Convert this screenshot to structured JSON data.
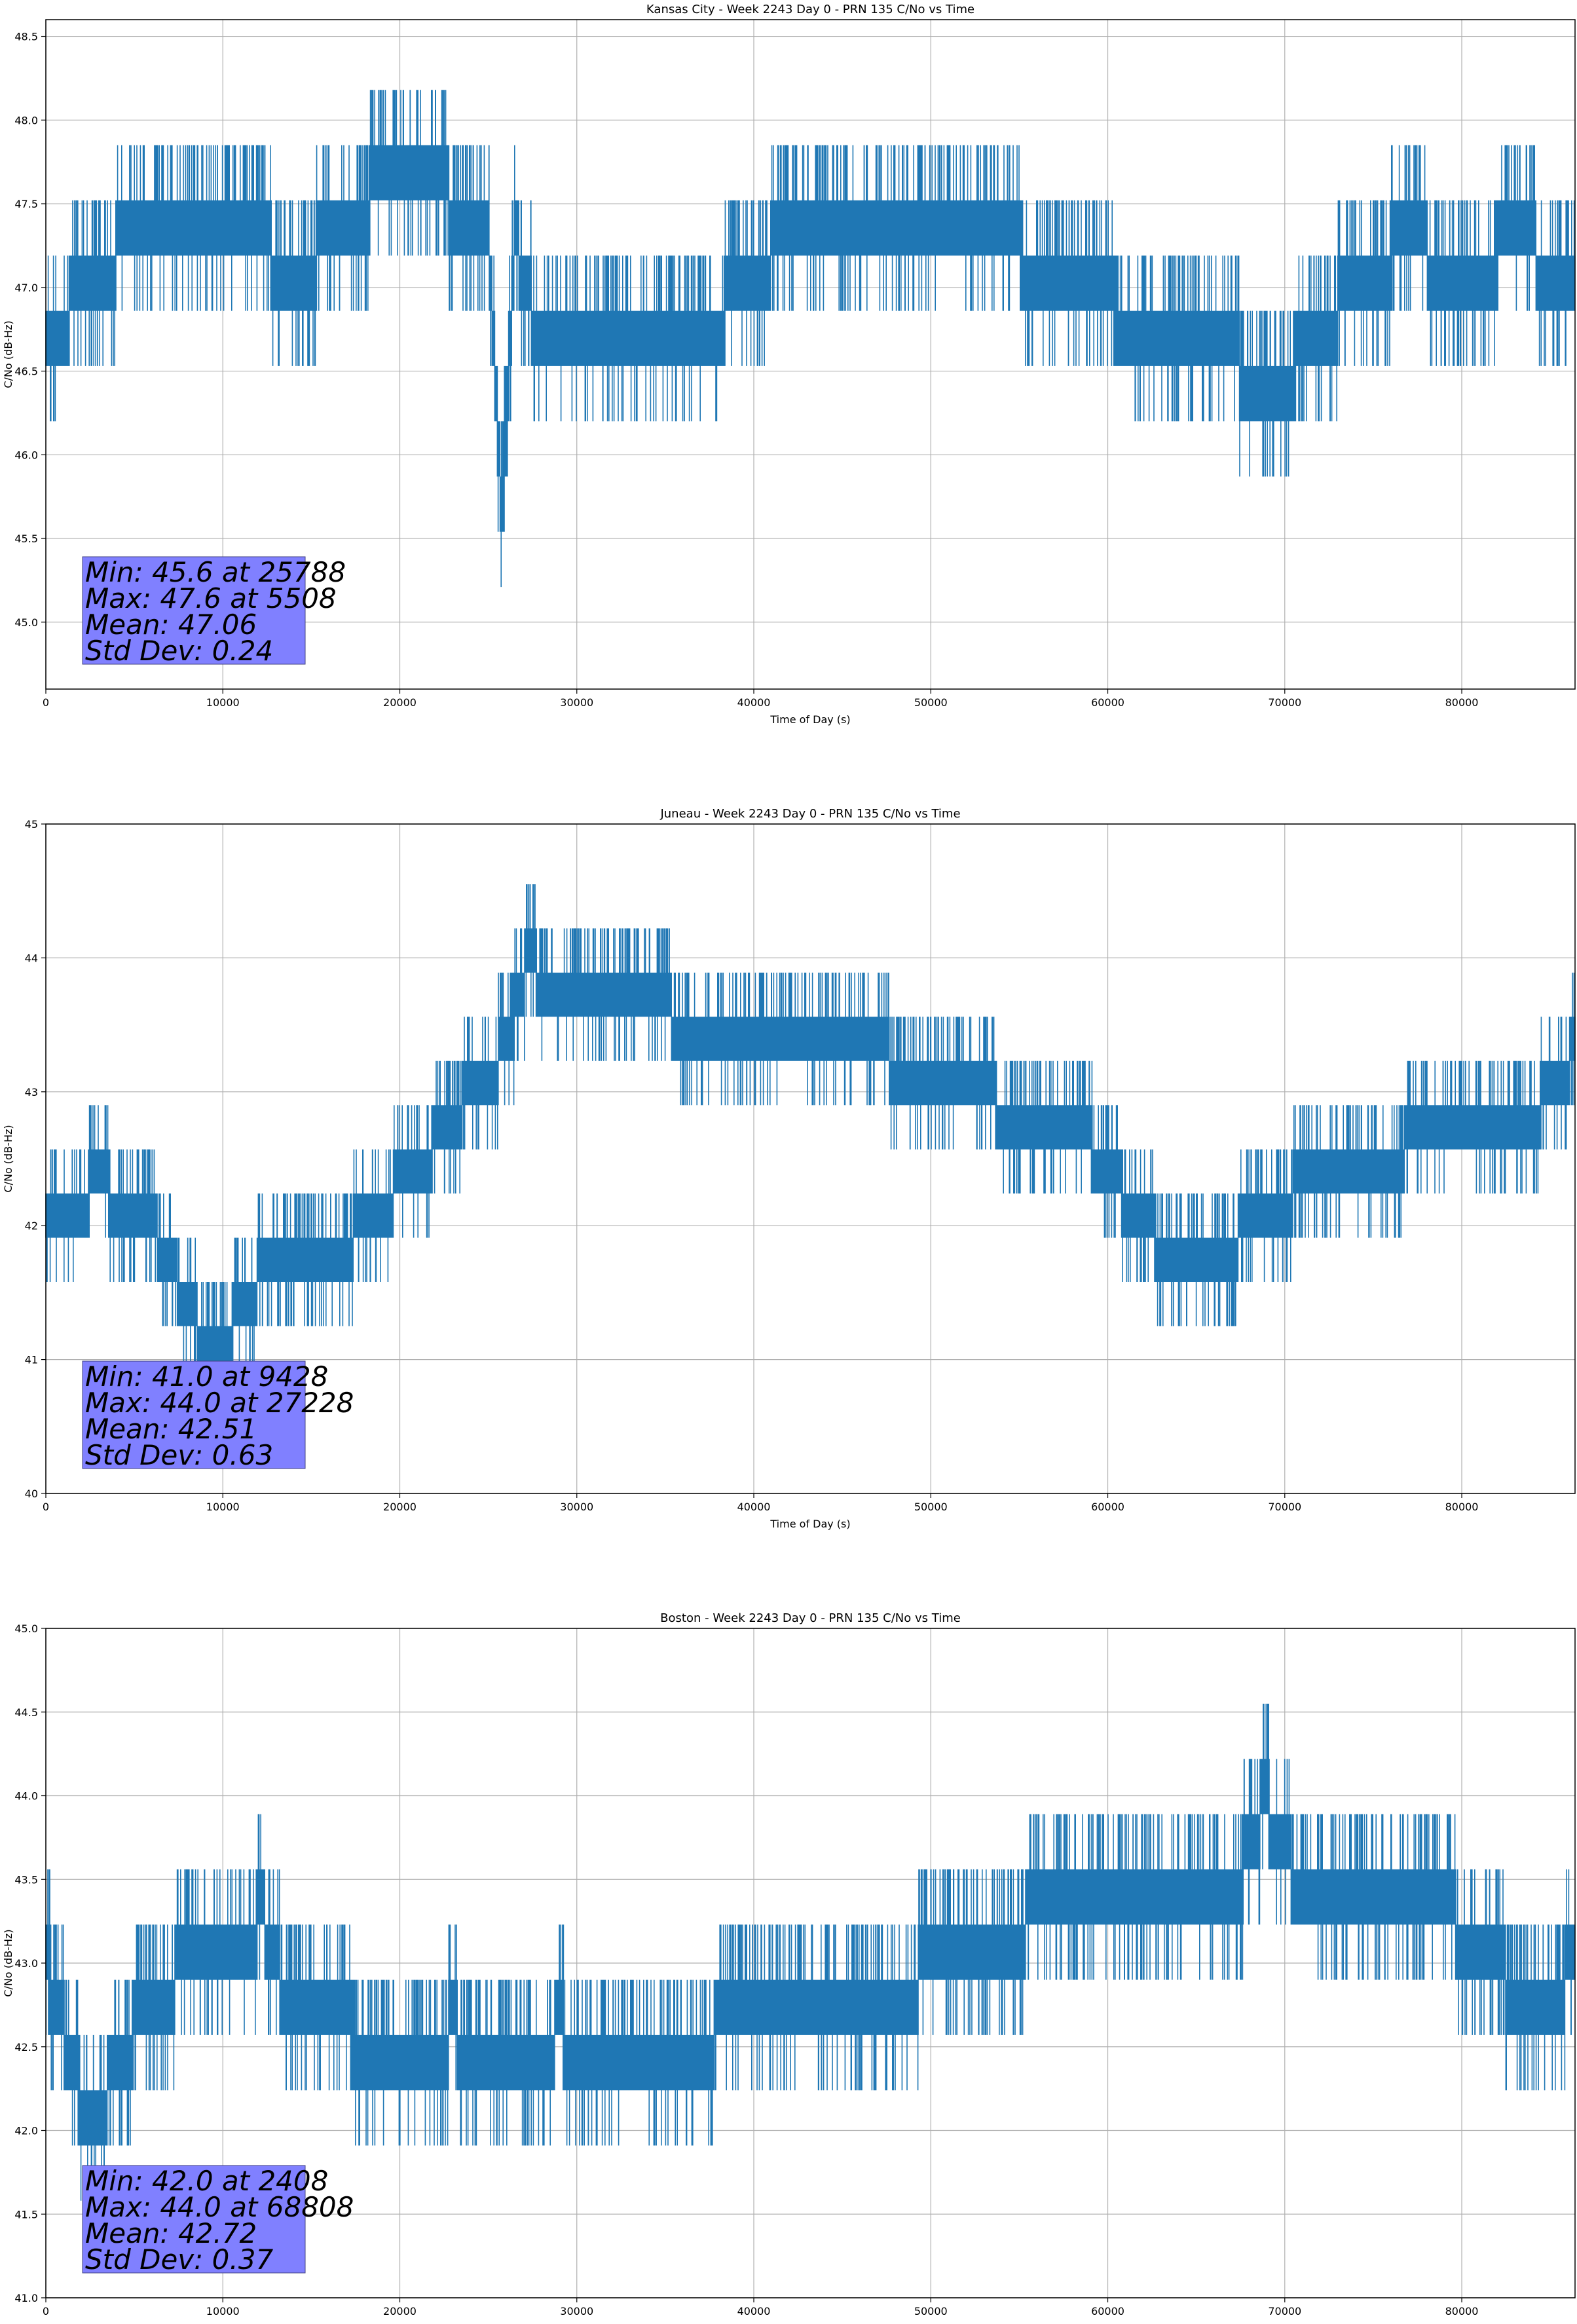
{
  "chart_data": [
    {
      "type": "line",
      "title": "Kansas City - Week 2243 Day 0 - PRN 135 C/No vs Time",
      "xlabel": "Time of Day (s)",
      "ylabel": "C/No (dB-Hz)",
      "xlim": [
        0,
        86400
      ],
      "ylim": [
        44.6,
        48.6
      ],
      "xticks": [
        0,
        10000,
        20000,
        30000,
        40000,
        50000,
        60000,
        70000,
        80000
      ],
      "yticks": [
        45.0,
        45.5,
        46.0,
        46.5,
        47.0,
        47.5,
        48.0,
        48.5
      ],
      "ytick_decimals": 1,
      "grid": true,
      "color": "#1f77b4",
      "stats": [
        "Min: 45.6 at 25788",
        "Max: 47.6 at 5508",
        "Mean: 47.06",
        "Std Dev: 0.24"
      ],
      "series": [
        {
          "x": [
            0,
            2000,
            5000,
            8000,
            12000,
            14000,
            16000,
            19000,
            22000,
            25000,
            25788,
            26500,
            28000,
            31000,
            34000,
            37000,
            39000,
            42000,
            45000,
            48000,
            51000,
            54000,
            57000,
            60000,
            61000,
            64000,
            67000,
            69000,
            71000,
            74000,
            77000,
            80000,
            83000,
            86400
          ],
          "y": [
            46.6,
            47.0,
            47.3,
            47.3,
            47.3,
            47.0,
            47.3,
            47.6,
            47.6,
            47.3,
            45.6,
            47.3,
            46.6,
            46.6,
            46.6,
            46.6,
            47.0,
            47.3,
            47.3,
            47.3,
            47.3,
            47.3,
            47.0,
            47.0,
            46.6,
            46.6,
            46.6,
            46.3,
            46.6,
            47.0,
            47.3,
            47.0,
            47.3,
            47.0
          ]
        }
      ]
    },
    {
      "type": "line",
      "title": "Juneau - Week 2243 Day 0 - PRN 135 C/No vs Time",
      "xlabel": "Time of Day (s)",
      "ylabel": "C/No (dB-Hz)",
      "xlim": [
        0,
        86400
      ],
      "ylim": [
        40,
        45
      ],
      "xticks": [
        0,
        10000,
        20000,
        30000,
        40000,
        50000,
        60000,
        70000,
        80000
      ],
      "yticks": [
        40,
        41,
        42,
        43,
        44,
        45
      ],
      "ytick_decimals": 0,
      "grid": true,
      "color": "#1f77b4",
      "stats": [
        "Min: 41.0 at 9428",
        "Max: 44.0 at 27228",
        "Mean: 42.51",
        "Std Dev: 0.63"
      ],
      "series": [
        {
          "x": [
            0,
            3000,
            6000,
            9428,
            12000,
            15000,
            18000,
            20000,
            22000,
            24000,
            26000,
            27228,
            29000,
            32000,
            35000,
            38000,
            41000,
            44000,
            47000,
            50000,
            53000,
            56000,
            59000,
            62000,
            65000,
            68000,
            71000,
            74000,
            77000,
            80000,
            83000,
            86400
          ],
          "y": [
            42.0,
            42.3,
            42.0,
            41.0,
            41.6,
            41.6,
            42.0,
            42.3,
            42.6,
            43.0,
            43.3,
            44.0,
            43.6,
            43.6,
            43.6,
            43.3,
            43.3,
            43.3,
            43.3,
            43.0,
            43.0,
            42.6,
            42.6,
            42.0,
            41.6,
            42.0,
            42.3,
            42.3,
            42.6,
            42.6,
            42.6,
            43.3
          ]
        }
      ]
    },
    {
      "type": "line",
      "title": "Boston - Week 2243 Day 0 - PRN 135 C/No vs Time",
      "xlabel": "Time of Day (s)",
      "ylabel": "C/No (dB-Hz)",
      "xlim": [
        0,
        86400
      ],
      "ylim": [
        41.0,
        45.0
      ],
      "xticks": [
        0,
        10000,
        20000,
        30000,
        40000,
        50000,
        60000,
        70000,
        80000
      ],
      "yticks": [
        41.0,
        41.5,
        42.0,
        42.5,
        43.0,
        43.5,
        44.0,
        44.5,
        45.0
      ],
      "ytick_decimals": 1,
      "grid": true,
      "color": "#1f77b4",
      "stats": [
        "Min: 42.0 at 2408",
        "Max: 44.0 at 68808",
        "Mean: 42.72",
        "Std Dev: 0.37"
      ],
      "series": [
        {
          "x": [
            0,
            2408,
            5000,
            8000,
            11000,
            12200,
            14000,
            17000,
            20000,
            23000,
            26000,
            29000,
            32000,
            35000,
            38000,
            41000,
            44000,
            47000,
            50000,
            53000,
            56000,
            59000,
            62000,
            65000,
            68000,
            68808,
            70000,
            73000,
            76000,
            79000,
            82000,
            84000,
            86400
          ],
          "y": [
            43.0,
            42.0,
            42.6,
            43.0,
            43.0,
            43.3,
            42.6,
            42.6,
            42.3,
            42.6,
            42.3,
            42.6,
            42.3,
            42.3,
            42.6,
            42.6,
            42.6,
            42.6,
            43.0,
            43.0,
            43.3,
            43.3,
            43.3,
            43.3,
            43.6,
            44.0,
            43.6,
            43.3,
            43.3,
            43.3,
            43.0,
            42.6,
            43.0
          ]
        }
      ]
    }
  ]
}
